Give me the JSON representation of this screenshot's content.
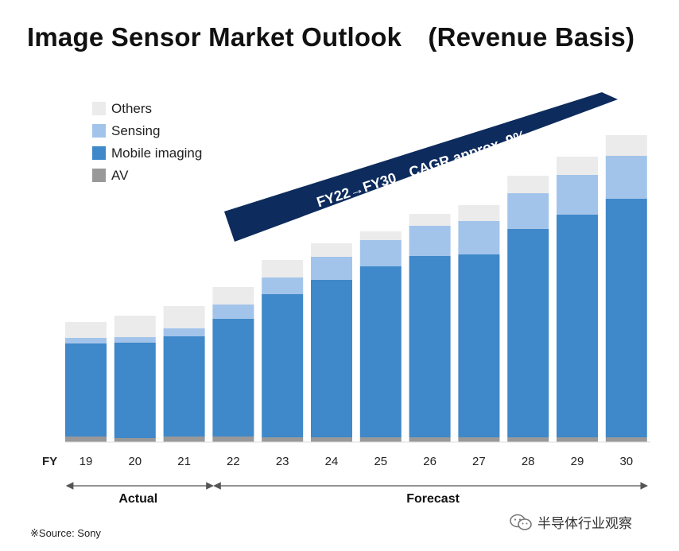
{
  "title": "Image Sensor Market Outlook　(Revenue Basis)",
  "source": "※Source: Sony",
  "watermark": "半导体行业观察",
  "colors": {
    "Others": "#ebebeb",
    "Sensing": "#a3c4ea",
    "Mobile imaging": "#3f88c9",
    "AV": "#999999",
    "arrow": "#0d2b5c",
    "axis": "#555555"
  },
  "chart_data": {
    "type": "bar",
    "stacked": true,
    "x_axis_label": "FY",
    "categories": [
      "19",
      "20",
      "21",
      "22",
      "23",
      "24",
      "25",
      "26",
      "27",
      "28",
      "29",
      "30"
    ],
    "series": [
      {
        "name": "AV",
        "values": [
          7,
          5,
          7,
          7,
          6,
          6,
          6,
          6,
          6,
          6,
          6,
          6
        ]
      },
      {
        "name": "Mobile imaging",
        "values": [
          117,
          120,
          126,
          148,
          180,
          198,
          215,
          228,
          230,
          262,
          280,
          300
        ]
      },
      {
        "name": "Sensing",
        "values": [
          7,
          7,
          10,
          18,
          21,
          29,
          33,
          38,
          42,
          45,
          50,
          54
        ]
      },
      {
        "name": "Others",
        "values": [
          20,
          27,
          28,
          22,
          22,
          17,
          11,
          15,
          20,
          22,
          23,
          26
        ]
      }
    ],
    "legend_order": [
      "Others",
      "Sensing",
      "Mobile imaging",
      "AV"
    ],
    "legend_position": "top-left",
    "annotation": "FY22→FY30　CAGR approx. 9%",
    "periods": [
      {
        "label": "Actual",
        "from": "19",
        "to": "21"
      },
      {
        "label": "Forecast",
        "from": "22",
        "to": "30"
      }
    ],
    "ylim": [
      0,
      400
    ],
    "grid": false
  }
}
